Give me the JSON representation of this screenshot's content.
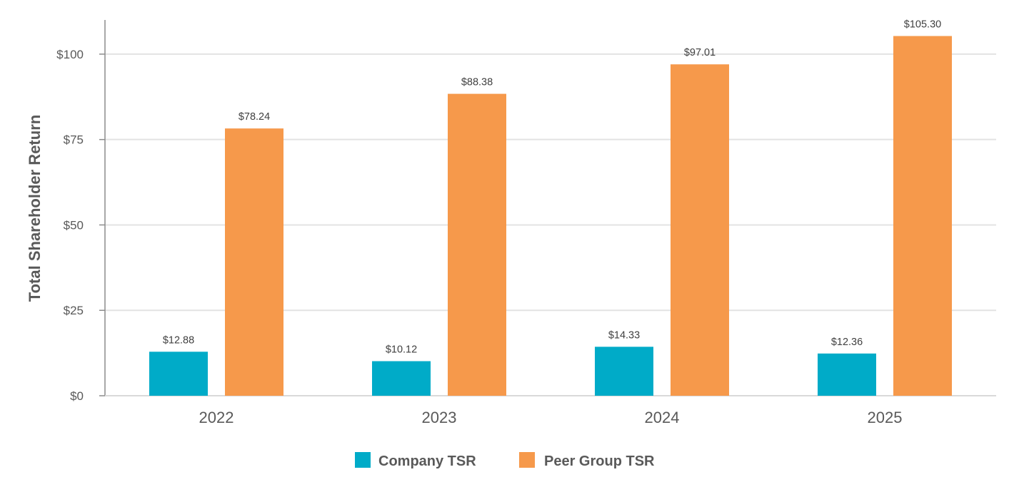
{
  "chart_data": {
    "type": "bar",
    "ylabel": "Total Shareholder Return",
    "xlabel": "",
    "ylim": [
      0,
      110
    ],
    "yticks": [
      0,
      25,
      50,
      75,
      100
    ],
    "ytick_labels": [
      "$0",
      "$25",
      "$50",
      "$75",
      "$100"
    ],
    "categories": [
      "2022",
      "2023",
      "2024",
      "2025"
    ],
    "grid": true,
    "legend_position": "bottom",
    "series": [
      {
        "name": "Company TSR",
        "color": "#00ABC8",
        "values": [
          12.88,
          10.12,
          14.33,
          12.36
        ],
        "labels": [
          "$12.88",
          "$10.12",
          "$14.33",
          "$12.36"
        ]
      },
      {
        "name": "Peer Group TSR",
        "color": "#F6994B",
        "values": [
          78.24,
          88.38,
          97.01,
          105.3
        ],
        "labels": [
          "$78.24",
          "$88.38",
          "$97.01",
          "$105.30"
        ]
      }
    ]
  }
}
